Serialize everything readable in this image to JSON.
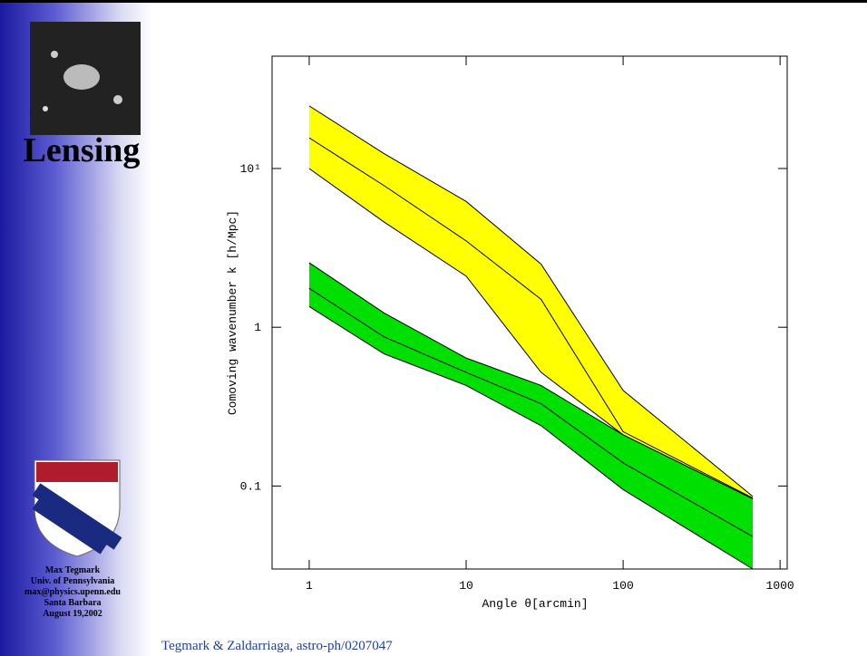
{
  "slide": {
    "heading": "Lensing",
    "author": [
      "Max Tegmark",
      "Univ. of Pennsylvania",
      "max@physics.upenn.edu",
      "Santa Barbara",
      "August 19,2002"
    ],
    "citation": "Tegmark & Zaldarriaga, astro-ph/0207047"
  },
  "chart_data": {
    "type": "band",
    "xlabel": "Angle θ[arcmin]",
    "ylabel": "Comoving wavenumber k [h/Mpc]",
    "log_x": true,
    "log_y": true,
    "x": [
      1,
      3,
      10,
      30,
      100,
      670
    ],
    "bands": [
      {
        "color": "#ffff00",
        "upper": [
          24.8,
          12.4,
          6.2,
          2.5,
          0.4,
          0.086
        ],
        "middle": [
          15.6,
          7.8,
          3.5,
          1.5,
          0.22,
          0.084
        ],
        "lower": [
          10,
          4.6,
          2.1,
          0.52,
          0.21,
          0.083
        ]
      },
      {
        "color": "#00e000",
        "upper": [
          2.55,
          1.23,
          0.64,
          0.43,
          0.21,
          0.083
        ],
        "middle": [
          1.76,
          0.87,
          0.52,
          0.33,
          0.14,
          0.048
        ],
        "lower": [
          1.35,
          0.68,
          0.43,
          0.24,
          0.095,
          0.03
        ]
      }
    ],
    "xlim": [
      0.58,
      1110
    ],
    "ylim": [
      0.03,
      51
    ],
    "xticks": [
      1,
      10,
      100,
      1000
    ],
    "yticks": [
      0.1,
      1,
      {
        "value": 10,
        "label": "10¹"
      }
    ]
  }
}
